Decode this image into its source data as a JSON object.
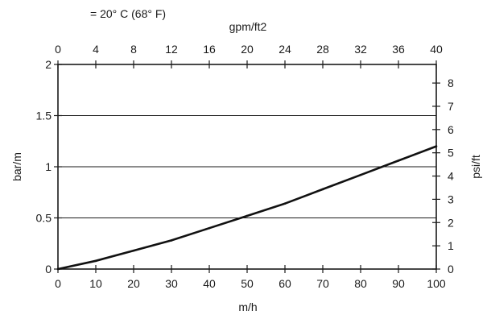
{
  "chart_data": {
    "type": "line",
    "title": "= 20° C (68° F)",
    "xlabel": "m/h",
    "ylabel": "bar/m",
    "top_axis_label": "gpm/ft2",
    "right_axis_label": "psi/ft",
    "xlim": [
      0,
      100
    ],
    "ylim": [
      0,
      2
    ],
    "top_lim": [
      0,
      40
    ],
    "right_lim": [
      0,
      8.8
    ],
    "x_ticks": [
      "0",
      "10",
      "20",
      "30",
      "40",
      "50",
      "60",
      "70",
      "80",
      "90",
      "100"
    ],
    "y_ticks": [
      "0",
      "0.5",
      "1",
      "1.5",
      "2"
    ],
    "top_ticks": [
      "0",
      "4",
      "8",
      "12",
      "16",
      "20",
      "24",
      "28",
      "32",
      "36",
      "40"
    ],
    "right_ticks": [
      "0",
      "1",
      "2",
      "3",
      "4",
      "5",
      "6",
      "7",
      "8"
    ],
    "grid_y": [
      0.5,
      1,
      1.5
    ],
    "series": [
      {
        "x": [
          0,
          10,
          20,
          30,
          40,
          50,
          60,
          70,
          80,
          90,
          100
        ],
        "values": [
          0,
          0.08,
          0.18,
          0.28,
          0.4,
          0.52,
          0.64,
          0.78,
          0.92,
          1.06,
          1.2
        ]
      }
    ]
  }
}
